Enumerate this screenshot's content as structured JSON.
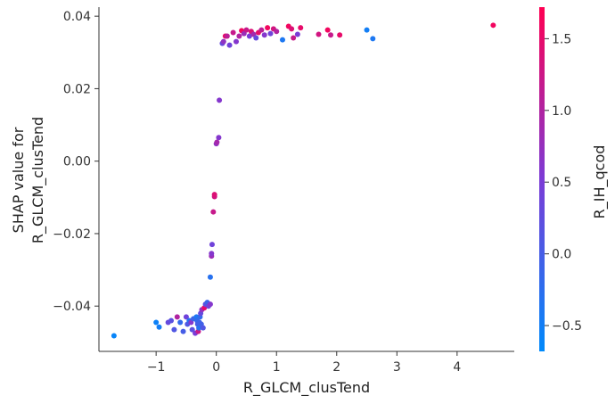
{
  "chart_data": {
    "type": "scatter",
    "title": "",
    "xlabel": "R_GLCM_clusTend",
    "ylabel_lines": [
      "SHAP value for",
      "R_GLCM_clusTend"
    ],
    "xlim": [
      -1.95,
      4.95
    ],
    "ylim": [
      -0.0525,
      0.0425
    ],
    "xticks": [
      -1,
      0,
      1,
      2,
      3,
      4
    ],
    "yticks": [
      -0.04,
      -0.02,
      0.0,
      0.02,
      0.04
    ],
    "ytick_labels": [
      "−0.04",
      "−0.02",
      "0.00",
      "0.02",
      "0.04"
    ],
    "xtick_labels": [
      "−1",
      "0",
      "1",
      "2",
      "3",
      "4"
    ],
    "grid": false,
    "colorbar": {
      "label": "R_IH_qcod",
      "min": -0.68,
      "max": 1.72,
      "ticks": [
        -0.5,
        0.0,
        0.5,
        1.0,
        1.5
      ],
      "tick_labels": [
        "−0.5",
        "0.0",
        "0.5",
        "1.0",
        "1.5"
      ],
      "color_low": "#008afb",
      "color_mid": "#7c3bd6",
      "color_high": "#ff0052"
    },
    "points": [
      {
        "x": -1.7,
        "y": -0.0482,
        "c": -0.6
      },
      {
        "x": -1.0,
        "y": -0.0445,
        "c": -0.55
      },
      {
        "x": -0.95,
        "y": -0.0458,
        "c": -0.5
      },
      {
        "x": -0.8,
        "y": -0.0445,
        "c": 0.3
      },
      {
        "x": -0.75,
        "y": -0.044,
        "c": 0.2
      },
      {
        "x": -0.7,
        "y": -0.0465,
        "c": 0.1
      },
      {
        "x": -0.65,
        "y": -0.043,
        "c": 1.0
      },
      {
        "x": -0.6,
        "y": -0.0445,
        "c": -0.2
      },
      {
        "x": -0.55,
        "y": -0.047,
        "c": 0.0
      },
      {
        "x": -0.5,
        "y": -0.043,
        "c": 0.4
      },
      {
        "x": -0.48,
        "y": -0.045,
        "c": 0.1
      },
      {
        "x": -0.45,
        "y": -0.044,
        "c": -0.3
      },
      {
        "x": -0.42,
        "y": -0.0445,
        "c": 0.6
      },
      {
        "x": -0.4,
        "y": -0.0465,
        "c": 0.2
      },
      {
        "x": -0.38,
        "y": -0.0435,
        "c": -0.1
      },
      {
        "x": -0.35,
        "y": -0.0475,
        "c": 0.5
      },
      {
        "x": -0.33,
        "y": -0.043,
        "c": -0.4
      },
      {
        "x": -0.32,
        "y": -0.044,
        "c": -0.2
      },
      {
        "x": -0.31,
        "y": -0.045,
        "c": 0.0
      },
      {
        "x": -0.3,
        "y": -0.047,
        "c": 1.2
      },
      {
        "x": -0.29,
        "y": -0.046,
        "c": -0.3
      },
      {
        "x": -0.28,
        "y": -0.0445,
        "c": -0.1
      },
      {
        "x": -0.27,
        "y": -0.043,
        "c": -0.2
      },
      {
        "x": -0.26,
        "y": -0.042,
        "c": 0.3
      },
      {
        "x": -0.25,
        "y": -0.045,
        "c": -0.05
      },
      {
        "x": -0.24,
        "y": -0.041,
        "c": 0.7
      },
      {
        "x": -0.22,
        "y": -0.046,
        "c": 0.1
      },
      {
        "x": -0.2,
        "y": -0.0405,
        "c": 1.5
      },
      {
        "x": -0.18,
        "y": -0.0395,
        "c": 0.2
      },
      {
        "x": -0.15,
        "y": -0.039,
        "c": -0.1
      },
      {
        "x": -0.13,
        "y": -0.04,
        "c": 0.4
      },
      {
        "x": -0.1,
        "y": -0.0395,
        "c": 0.6
      },
      {
        "x": -0.1,
        "y": -0.032,
        "c": -0.3
      },
      {
        "x": -0.08,
        "y": -0.0262,
        "c": 0.8
      },
      {
        "x": -0.08,
        "y": -0.0255,
        "c": 0.6
      },
      {
        "x": -0.07,
        "y": -0.023,
        "c": 0.4
      },
      {
        "x": -0.05,
        "y": -0.014,
        "c": 1.2
      },
      {
        "x": -0.03,
        "y": -0.0098,
        "c": 1.3
      },
      {
        "x": -0.03,
        "y": -0.0092,
        "c": 1.4
      },
      {
        "x": 0.0,
        "y": 0.0048,
        "c": 0.7
      },
      {
        "x": 0.01,
        "y": 0.0052,
        "c": 0.9
      },
      {
        "x": 0.04,
        "y": 0.0065,
        "c": 0.6
      },
      {
        "x": 0.05,
        "y": 0.0168,
        "c": 0.6
      },
      {
        "x": 0.1,
        "y": 0.0325,
        "c": 0.3
      },
      {
        "x": 0.12,
        "y": 0.033,
        "c": 0.7
      },
      {
        "x": 0.15,
        "y": 0.0345,
        "c": 1.5
      },
      {
        "x": 0.18,
        "y": 0.0345,
        "c": 1.1
      },
      {
        "x": 0.22,
        "y": 0.032,
        "c": 0.4
      },
      {
        "x": 0.28,
        "y": 0.0355,
        "c": 1.2
      },
      {
        "x": 0.33,
        "y": 0.033,
        "c": 0.6
      },
      {
        "x": 0.38,
        "y": 0.0345,
        "c": 1.0
      },
      {
        "x": 0.42,
        "y": 0.036,
        "c": 1.6
      },
      {
        "x": 0.46,
        "y": 0.0352,
        "c": 0.8
      },
      {
        "x": 0.5,
        "y": 0.0362,
        "c": 1.2
      },
      {
        "x": 0.55,
        "y": 0.0345,
        "c": 0.5
      },
      {
        "x": 0.58,
        "y": 0.0358,
        "c": 1.4
      },
      {
        "x": 0.62,
        "y": 0.035,
        "c": 0.9
      },
      {
        "x": 0.66,
        "y": 0.034,
        "c": 0.3
      },
      {
        "x": 0.7,
        "y": 0.0355,
        "c": 1.5
      },
      {
        "x": 0.75,
        "y": 0.0362,
        "c": 1.1
      },
      {
        "x": 0.8,
        "y": 0.0348,
        "c": 0.6
      },
      {
        "x": 0.85,
        "y": 0.0368,
        "c": 1.6
      },
      {
        "x": 0.9,
        "y": 0.0352,
        "c": 0.4
      },
      {
        "x": 0.95,
        "y": 0.0365,
        "c": 1.3
      },
      {
        "x": 1.0,
        "y": 0.0358,
        "c": 1.0
      },
      {
        "x": 1.1,
        "y": 0.0335,
        "c": -0.4
      },
      {
        "x": 1.2,
        "y": 0.0372,
        "c": 1.6
      },
      {
        "x": 1.25,
        "y": 0.0365,
        "c": 1.4
      },
      {
        "x": 1.28,
        "y": 0.034,
        "c": 1.2
      },
      {
        "x": 1.35,
        "y": 0.035,
        "c": 0.5
      },
      {
        "x": 1.4,
        "y": 0.0368,
        "c": 1.5
      },
      {
        "x": 1.7,
        "y": 0.035,
        "c": 1.3
      },
      {
        "x": 1.85,
        "y": 0.0362,
        "c": 1.6
      },
      {
        "x": 1.9,
        "y": 0.0348,
        "c": 1.2
      },
      {
        "x": 2.05,
        "y": 0.0348,
        "c": 1.5
      },
      {
        "x": 2.5,
        "y": 0.0362,
        "c": -0.5
      },
      {
        "x": 2.6,
        "y": 0.0338,
        "c": -0.4
      },
      {
        "x": 4.6,
        "y": 0.0375,
        "c": 1.6
      }
    ]
  }
}
